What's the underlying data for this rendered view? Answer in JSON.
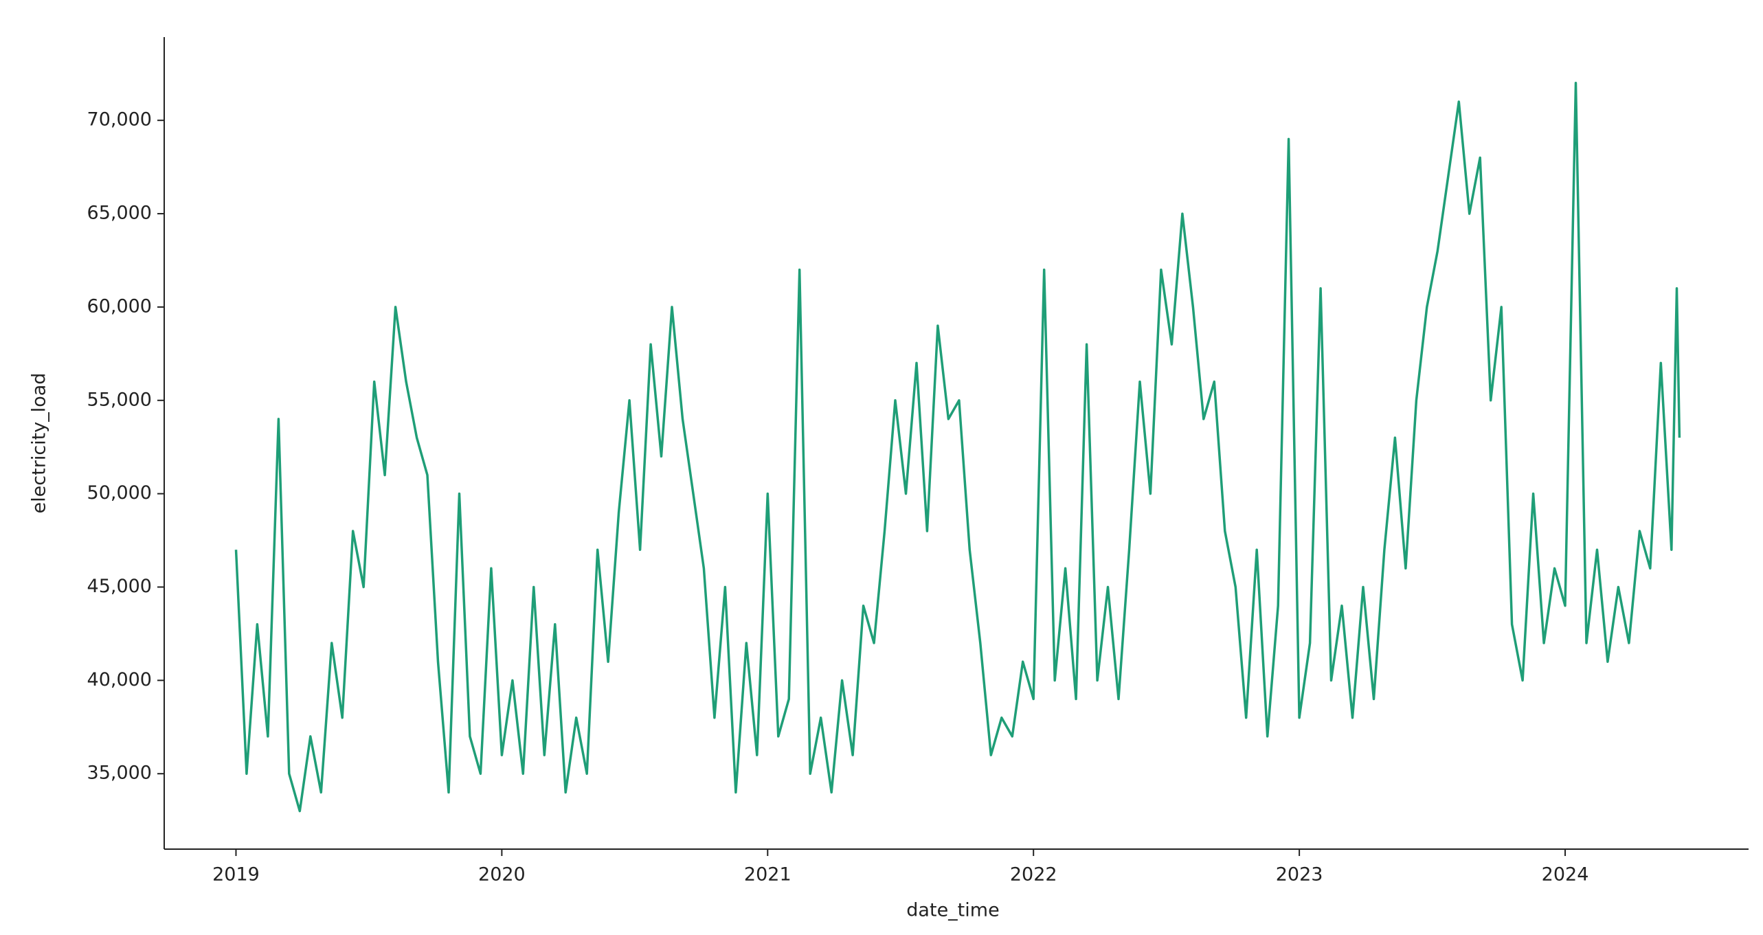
{
  "chart_data": {
    "type": "line",
    "xlabel": "date_time",
    "ylabel": "electricity_load",
    "xlim": [
      2018.73,
      2024.69
    ],
    "xticks": [
      2019,
      2020,
      2021,
      2022,
      2023,
      2024
    ],
    "ylim": [
      30960,
      74460
    ],
    "yticks": [
      {
        "value": 35000,
        "label": "35,000"
      },
      {
        "value": 40000,
        "label": "40,000"
      },
      {
        "value": 45000,
        "label": "45,000"
      },
      {
        "value": 50000,
        "label": "50,000"
      },
      {
        "value": 55000,
        "label": "55,000"
      },
      {
        "value": 60000,
        "label": "60,000"
      },
      {
        "value": 65000,
        "label": "65,000"
      },
      {
        "value": 70000,
        "label": "70,000"
      }
    ],
    "grid": false,
    "series": [
      {
        "color": "#1f9e77",
        "x": [
          2019.0,
          2019.04,
          2019.08,
          2019.12,
          2019.16,
          2019.2,
          2019.24,
          2019.28,
          2019.32,
          2019.36,
          2019.4,
          2019.44,
          2019.48,
          2019.52,
          2019.56,
          2019.6,
          2019.64,
          2019.68,
          2019.72,
          2019.76,
          2019.8,
          2019.84,
          2019.88,
          2019.92,
          2019.96,
          2020.0,
          2020.04,
          2020.08,
          2020.12,
          2020.16,
          2020.2,
          2020.24,
          2020.28,
          2020.32,
          2020.36,
          2020.4,
          2020.44,
          2020.48,
          2020.52,
          2020.56,
          2020.6,
          2020.64,
          2020.68,
          2020.72,
          2020.76,
          2020.8,
          2020.84,
          2020.88,
          2020.92,
          2020.96,
          2021.0,
          2021.04,
          2021.08,
          2021.12,
          2021.16,
          2021.2,
          2021.24,
          2021.28,
          2021.32,
          2021.36,
          2021.4,
          2021.44,
          2021.48,
          2021.52,
          2021.56,
          2021.6,
          2021.64,
          2021.68,
          2021.72,
          2021.76,
          2021.8,
          2021.84,
          2021.88,
          2021.92,
          2021.96,
          2022.0,
          2022.04,
          2022.08,
          2022.12,
          2022.16,
          2022.2,
          2022.24,
          2022.28,
          2022.32,
          2022.36,
          2022.4,
          2022.44,
          2022.48,
          2022.52,
          2022.56,
          2022.6,
          2022.64,
          2022.68,
          2022.72,
          2022.76,
          2022.8,
          2022.84,
          2022.88,
          2022.92,
          2022.96,
          2023.0,
          2023.04,
          2023.08,
          2023.12,
          2023.16,
          2023.2,
          2023.24,
          2023.28,
          2023.32,
          2023.36,
          2023.4,
          2023.44,
          2023.48,
          2023.52,
          2023.56,
          2023.6,
          2023.64,
          2023.68,
          2023.72,
          2023.76,
          2023.8,
          2023.84,
          2023.88,
          2023.92,
          2023.96,
          2024.0,
          2024.04,
          2024.08,
          2024.12,
          2024.16,
          2024.2,
          2024.24,
          2024.28,
          2024.32,
          2024.36,
          2024.4,
          2024.42,
          2024.43
        ],
        "values": [
          47000,
          35000,
          43000,
          37000,
          54000,
          35000,
          33000,
          37000,
          34000,
          42000,
          38000,
          48000,
          45000,
          56000,
          51000,
          60000,
          56000,
          53000,
          51000,
          41000,
          34000,
          50000,
          37000,
          35000,
          46000,
          36000,
          40000,
          35000,
          45000,
          36000,
          43000,
          34000,
          38000,
          35000,
          47000,
          41000,
          49000,
          55000,
          47000,
          58000,
          52000,
          60000,
          54000,
          50000,
          46000,
          38000,
          45000,
          34000,
          42000,
          36000,
          50000,
          37000,
          39000,
          62000,
          35000,
          38000,
          34000,
          40000,
          36000,
          44000,
          42000,
          48000,
          55000,
          50000,
          57000,
          48000,
          59000,
          54000,
          55000,
          47000,
          42000,
          36000,
          38000,
          37000,
          41000,
          39000,
          62000,
          40000,
          46000,
          39000,
          58000,
          40000,
          45000,
          39000,
          47000,
          56000,
          50000,
          62000,
          58000,
          65000,
          60000,
          54000,
          56000,
          48000,
          45000,
          38000,
          47000,
          37000,
          44000,
          69000,
          38000,
          42000,
          61000,
          40000,
          44000,
          38000,
          45000,
          39000,
          47000,
          53000,
          46000,
          55000,
          60000,
          63000,
          67000,
          71000,
          65000,
          68000,
          55000,
          60000,
          43000,
          40000,
          50000,
          42000,
          46000,
          44000,
          72000,
          42000,
          47000,
          41000,
          45000,
          42000,
          48000,
          46000,
          57000,
          47000,
          61000,
          53000
        ]
      }
    ]
  }
}
